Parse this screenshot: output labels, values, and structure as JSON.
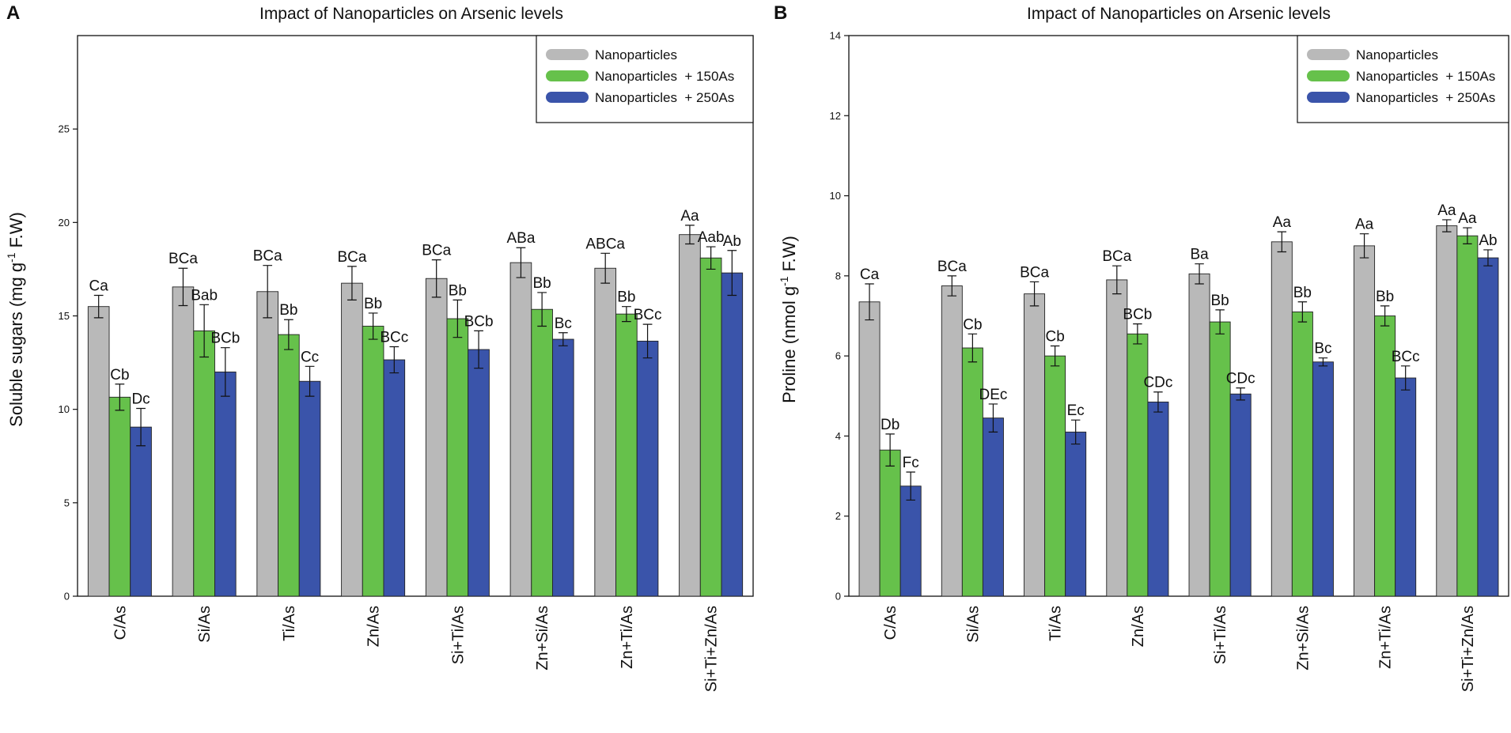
{
  "figure": {
    "panels": [
      "A",
      "B"
    ]
  },
  "colors": {
    "nano": "#b9b9b9",
    "as150": "#66c14b",
    "as250": "#3a54aa",
    "axis": "#111111"
  },
  "chart_data": [
    {
      "type": "bar",
      "panel": "A",
      "title": "Impact of Nanoparticles on Arsenic levels",
      "xlabel": "",
      "ylabel": "Soluble sugars (mg g-1 F.W)",
      "ylabel_parts": {
        "main": "Soluble sugars (mg g",
        "sup": "-1",
        "end": " F.W)"
      },
      "ylim": [
        0,
        30
      ],
      "yticks": [
        0,
        5,
        10,
        15,
        20,
        25
      ],
      "grid": false,
      "legend_position": "top-right",
      "categories": [
        "C/As",
        "Si/As",
        "Ti/As",
        "Zn/As",
        "Si+Ti/As",
        "Zn+Si/As",
        "Zn+Ti/As",
        "Si+Ti+Zn/As"
      ],
      "series": [
        {
          "name": "Nanoparticles",
          "color_key": "nano",
          "values": [
            15.5,
            16.55,
            16.3,
            16.75,
            17.0,
            17.85,
            17.55,
            19.35
          ],
          "errors": [
            0.6,
            1.0,
            1.4,
            0.9,
            1.0,
            0.8,
            0.8,
            0.5
          ],
          "labels": [
            "Ca",
            "BCa",
            "BCa",
            "BCa",
            "BCa",
            "ABa",
            "ABCa",
            "Aa"
          ]
        },
        {
          "name": "Nanoparticles  + 150As",
          "color_key": "as150",
          "values": [
            10.65,
            14.2,
            14.0,
            14.45,
            14.85,
            15.35,
            15.1,
            18.1
          ],
          "errors": [
            0.7,
            1.4,
            0.8,
            0.7,
            1.0,
            0.9,
            0.4,
            0.6
          ],
          "labels": [
            "Cb",
            "Bab",
            "Bb",
            "Bb",
            "Bb",
            "Bb",
            "Bb",
            "Aab"
          ]
        },
        {
          "name": "Nanoparticles  + 250As",
          "color_key": "as250",
          "values": [
            9.05,
            12.0,
            11.5,
            12.65,
            13.2,
            13.75,
            13.65,
            17.3
          ],
          "errors": [
            1.0,
            1.3,
            0.8,
            0.7,
            1.0,
            0.35,
            0.9,
            1.2
          ],
          "labels": [
            "Dc",
            "BCb",
            "Cc",
            "BCc",
            "BCb",
            "Bc",
            "BCc",
            "Ab"
          ]
        }
      ]
    },
    {
      "type": "bar",
      "panel": "B",
      "title": "Impact of Nanoparticles on Arsenic levels",
      "xlabel": "",
      "ylabel": "Proline (nmol g-1 F.W)",
      "ylabel_parts": {
        "main": "Proline (nmol g",
        "sup": "-1",
        "end": " F.W)"
      },
      "ylim": [
        0,
        14
      ],
      "yticks": [
        0,
        2,
        4,
        6,
        8,
        10,
        12,
        14
      ],
      "grid": false,
      "legend_position": "top-right",
      "categories": [
        "C/As",
        "Si/As",
        "Ti/As",
        "Zn/As",
        "Si+Ti/As",
        "Zn+Si/As",
        "Zn+Ti/As",
        "Si+Ti+Zn/As"
      ],
      "series": [
        {
          "name": "Nanoparticles",
          "color_key": "nano",
          "values": [
            7.35,
            7.75,
            7.55,
            7.9,
            8.05,
            8.85,
            8.75,
            9.25
          ],
          "errors": [
            0.45,
            0.25,
            0.3,
            0.35,
            0.25,
            0.25,
            0.3,
            0.15
          ],
          "labels": [
            "Ca",
            "BCa",
            "BCa",
            "BCa",
            "Ba",
            "Aa",
            "Aa",
            "Aa"
          ]
        },
        {
          "name": "Nanoparticles  + 150As",
          "color_key": "as150",
          "values": [
            3.65,
            6.2,
            6.0,
            6.55,
            6.85,
            7.1,
            7.0,
            9.0
          ],
          "errors": [
            0.4,
            0.35,
            0.25,
            0.25,
            0.3,
            0.25,
            0.25,
            0.2
          ],
          "labels": [
            "Db",
            "Cb",
            "Cb",
            "BCb",
            "Bb",
            "Bb",
            "Bb",
            "Aa"
          ]
        },
        {
          "name": "Nanoparticles  + 250As",
          "color_key": "as250",
          "values": [
            2.75,
            4.45,
            4.1,
            4.85,
            5.05,
            5.85,
            5.45,
            8.45
          ],
          "errors": [
            0.35,
            0.35,
            0.3,
            0.25,
            0.15,
            0.1,
            0.3,
            0.2
          ],
          "labels": [
            "Fc",
            "DEc",
            "Ec",
            "CDc",
            "CDc",
            "Bc",
            "BCc",
            "Ab"
          ]
        }
      ]
    }
  ]
}
